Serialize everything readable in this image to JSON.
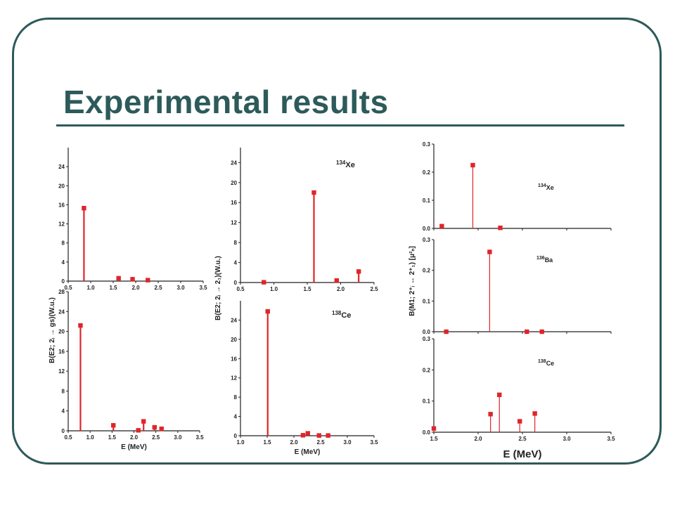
{
  "slide": {
    "title": "Experimental results",
    "colors": {
      "frame": "#2d5a5a",
      "marker": "#e0252a",
      "axis": "#222222"
    }
  },
  "left_ylabel": "B(E2; 2ᵢ → gs)(W.u.)",
  "middle_ylabel": "B(E2; 2ᵢ → 2₁)(W.u.)",
  "right_ylabel": "B(M1; 2⁺ᵢ ↔ 2⁺₁) [μ²ₙ]",
  "chart_data": [
    {
      "id": "e2gs_top",
      "type": "bar",
      "xlabel": "",
      "xlim": [
        0.5,
        3.5
      ],
      "ylim": [
        0,
        28
      ],
      "xticks": [
        "0.5",
        "1.0",
        "1.5",
        "2.0",
        "2.5",
        "3.0",
        "3.5"
      ],
      "yticks": [
        "0",
        "4",
        "8",
        "12",
        "16",
        "20",
        "24"
      ],
      "x": [
        0.85,
        1.62,
        1.93,
        2.27
      ],
      "values": [
        15.3,
        0.6,
        0.4,
        0.2
      ]
    },
    {
      "id": "e2gs_bottom",
      "type": "bar",
      "xlabel": "E (MeV)",
      "xlim": [
        0.5,
        3.5
      ],
      "ylim": [
        0,
        28
      ],
      "xticks": [
        "0.5",
        "1.0",
        "1.5",
        "2.0",
        "2.5",
        "3.0",
        "3.5"
      ],
      "yticks": [
        "0",
        "4",
        "8",
        "12",
        "16",
        "20",
        "24",
        "28"
      ],
      "x": [
        0.78,
        1.53,
        2.1,
        2.22,
        2.47,
        2.63
      ],
      "values": [
        21.2,
        1.1,
        0.1,
        1.9,
        0.7,
        0.4
      ]
    },
    {
      "id": "e2_21_top",
      "type": "bar",
      "xlabel": "",
      "annotation": "134",
      "annotation_el": "Xe",
      "xlim": [
        0.5,
        2.5
      ],
      "ylim": [
        0,
        27
      ],
      "xticks": [
        "0.5",
        "1.0",
        "1.5",
        "2.0",
        "2.5"
      ],
      "yticks": [
        "0",
        "4",
        "8",
        "12",
        "16",
        "20",
        "24"
      ],
      "x": [
        0.85,
        1.6,
        1.94,
        2.27
      ],
      "values": [
        0.05,
        18.0,
        0.4,
        2.2
      ]
    },
    {
      "id": "e2_21_bottom",
      "type": "bar",
      "xlabel": "E (MeV)",
      "annotation": "138",
      "annotation_el": "Ce",
      "xlim": [
        1.0,
        3.5
      ],
      "ylim": [
        0,
        28
      ],
      "xticks": [
        "1.0",
        "1.5",
        "2.0",
        "2.5",
        "3.0",
        "3.5"
      ],
      "yticks": [
        "0",
        "4",
        "8",
        "12",
        "16",
        "20",
        "24"
      ],
      "x": [
        1.51,
        2.17,
        2.26,
        2.47,
        2.64
      ],
      "values": [
        25.8,
        0.1,
        0.5,
        0.05,
        0.05
      ]
    },
    {
      "id": "m1_xe",
      "type": "bar",
      "xlabel": "",
      "annotation": "134",
      "annotation_el": "Xe",
      "xlim": [
        1.5,
        3.5
      ],
      "ylim": [
        0,
        0.3
      ],
      "xticks": [],
      "yticks": [
        "0.0",
        "0.1",
        "0.2",
        "0.3"
      ],
      "x": [
        1.59,
        1.94,
        2.25
      ],
      "values": [
        0.008,
        0.225,
        0.002
      ]
    },
    {
      "id": "m1_ba",
      "type": "bar",
      "xlabel": "",
      "annotation": "136",
      "annotation_el": "Ba",
      "xlim": [
        1.5,
        3.5
      ],
      "ylim": [
        0,
        0.3
      ],
      "xticks": [],
      "yticks": [
        "0.0",
        "0.1",
        "0.2",
        "0.3"
      ],
      "x": [
        1.64,
        2.13,
        2.55,
        2.72
      ],
      "values": [
        0.0,
        0.26,
        0.0,
        0.0
      ]
    },
    {
      "id": "m1_ce",
      "type": "bar",
      "xlabel": "E (MeV)",
      "annotation": "138",
      "annotation_el": "Ce",
      "xlim": [
        1.5,
        3.5
      ],
      "ylim": [
        0,
        0.3
      ],
      "xticks": [
        "1.5",
        "2.0",
        "2.5",
        "3.0",
        "3.5"
      ],
      "yticks": [
        "0.0",
        "0.1",
        "0.2",
        "0.3"
      ],
      "x": [
        1.5,
        2.14,
        2.24,
        2.47,
        2.64
      ],
      "values": [
        0.012,
        0.058,
        0.12,
        0.035,
        0.06
      ]
    }
  ]
}
